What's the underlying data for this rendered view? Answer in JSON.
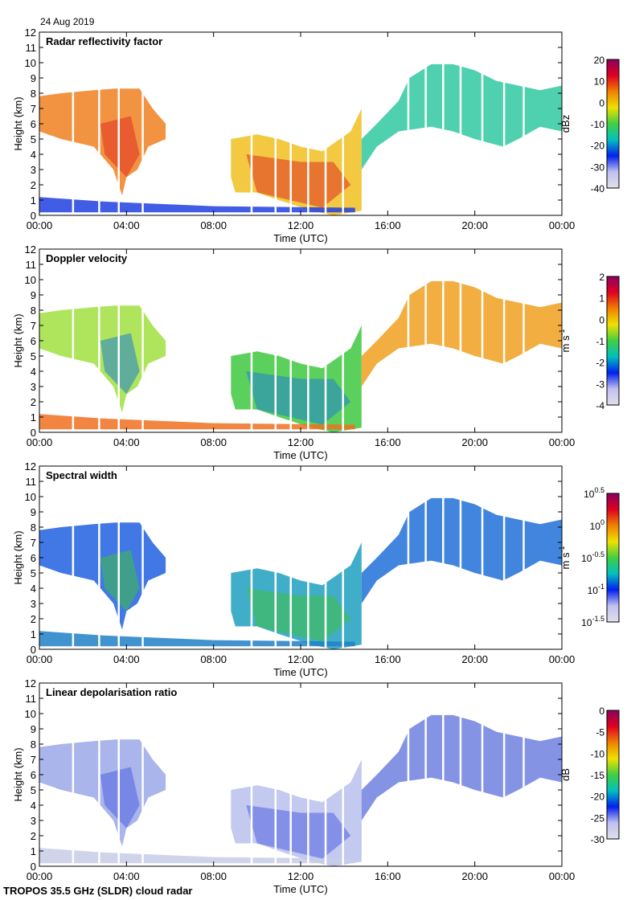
{
  "header": {
    "date": "24 Aug 2019"
  },
  "footer": {
    "instrument": "TROPOS 35.5 GHz (SLDR) cloud radar"
  },
  "chart_data": [
    {
      "type": "heatmap",
      "title": "Radar reflectivity factor",
      "xlabel": "Time (UTC)",
      "ylabel": "Height (km)",
      "xlim": [
        0,
        24
      ],
      "ylim": [
        0,
        12
      ],
      "xticks": [
        "00:00",
        "04:00",
        "08:00",
        "12:00",
        "16:00",
        "20:00",
        "00:00"
      ],
      "yticks": [
        "0",
        "1",
        "2",
        "3",
        "4",
        "5",
        "6",
        "7",
        "8",
        "9",
        "10",
        "11",
        "12"
      ],
      "colorbar": {
        "unit": "dBz",
        "ticks": [
          "20",
          "10",
          "0",
          "-10",
          "-20",
          "-30",
          "-40"
        ],
        "range": [
          -40,
          20
        ]
      },
      "region_colors": [
        "#f08020",
        "#f0c020",
        "#30c8a0",
        "#2040e0",
        "#c8c8e8"
      ],
      "core_color": "#e03020"
    },
    {
      "type": "heatmap",
      "title": "Doppler velocity",
      "xlabel": "Time (UTC)",
      "ylabel": "Height (km)",
      "xlim": [
        0,
        24
      ],
      "ylim": [
        0,
        12
      ],
      "xticks": [
        "00:00",
        "04:00",
        "08:00",
        "12:00",
        "16:00",
        "20:00",
        "00:00"
      ],
      "yticks": [
        "0",
        "1",
        "2",
        "3",
        "4",
        "5",
        "6",
        "7",
        "8",
        "9",
        "10",
        "11",
        "12"
      ],
      "colorbar": {
        "unit": "m s-1",
        "unit_base": "m s",
        "unit_exp": "-1",
        "ticks": [
          "2",
          "1",
          "0",
          "-1",
          "-2",
          "-3",
          "-4"
        ],
        "range": [
          -4,
          2
        ]
      },
      "region_colors": [
        "#a0e040",
        "#40c840",
        "#f0a020",
        "#f07020",
        "#c0c0f0"
      ],
      "core_color": "#2080d0"
    },
    {
      "type": "heatmap",
      "title": "Spectral width",
      "xlabel": "Time (UTC)",
      "ylabel": "Height (km)",
      "xlim": [
        0,
        24
      ],
      "ylim": [
        0,
        12
      ],
      "xticks": [
        "00:00",
        "04:00",
        "08:00",
        "12:00",
        "16:00",
        "20:00",
        "00:00"
      ],
      "yticks": [
        "0",
        "1",
        "2",
        "3",
        "4",
        "5",
        "6",
        "7",
        "8",
        "9",
        "10",
        "11",
        "12"
      ],
      "colorbar": {
        "unit": "m s-1",
        "unit_base": "m s",
        "unit_exp": "-1",
        "ticks": [
          "10^0.5",
          "10^0",
          "10^-0.5",
          "10^-1",
          "10^-1.5"
        ],
        "range": [
          -1.5,
          0.5
        ]
      },
      "region_colors": [
        "#2060e0",
        "#20a0c0",
        "#2070d8",
        "#2080c8",
        "#40c060"
      ],
      "core_color": "#40c040"
    },
    {
      "type": "heatmap",
      "title": "Linear depolarisation ratio",
      "xlabel": "Time (UTC)",
      "ylabel": "Height (km)",
      "xlim": [
        0,
        24
      ],
      "ylim": [
        0,
        12
      ],
      "xticks": [
        "00:00",
        "04:00",
        "08:00",
        "12:00",
        "16:00",
        "20:00",
        "00:00"
      ],
      "yticks": [
        "0",
        "1",
        "2",
        "3",
        "4",
        "5",
        "6",
        "7",
        "8",
        "9",
        "10",
        "11",
        "12"
      ],
      "colorbar": {
        "unit": "dB",
        "ticks": [
          "0",
          "-5",
          "-10",
          "-15",
          "-20",
          "-25",
          "-30"
        ],
        "range": [
          -30,
          0
        ]
      },
      "region_colors": [
        "#9aa8e8",
        "#b8c0ec",
        "#7080e0",
        "#c8cce8",
        "#c0c8f0"
      ],
      "core_color": "#5060e0"
    }
  ],
  "regions": [
    [
      [
        0,
        7.8
      ],
      [
        1,
        8
      ],
      [
        2.5,
        8.2
      ],
      [
        3.5,
        8.3
      ],
      [
        4.6,
        8.3
      ],
      [
        5.2,
        7
      ],
      [
        5.8,
        6
      ],
      [
        5.8,
        5
      ],
      [
        5,
        4.5
      ],
      [
        4.5,
        3
      ],
      [
        4,
        2.5
      ],
      [
        3.8,
        1.3
      ],
      [
        3.4,
        3
      ],
      [
        2.5,
        4.5
      ],
      [
        1,
        5
      ],
      [
        0,
        5.5
      ]
    ],
    [
      [
        8.8,
        5
      ],
      [
        10,
        5.3
      ],
      [
        11,
        5
      ],
      [
        12,
        4.5
      ],
      [
        13,
        4.2
      ],
      [
        14.3,
        5.5
      ],
      [
        14.8,
        7
      ],
      [
        14.8,
        0.3
      ],
      [
        13.5,
        0
      ],
      [
        12.5,
        0.3
      ],
      [
        11,
        1
      ],
      [
        10,
        1.5
      ],
      [
        9,
        1.5
      ],
      [
        8.8,
        2.5
      ]
    ],
    [
      [
        14.8,
        5
      ],
      [
        15.5,
        6
      ],
      [
        16.5,
        7.5
      ],
      [
        17,
        9
      ],
      [
        18,
        9.9
      ],
      [
        19,
        9.9
      ],
      [
        20,
        9.5
      ],
      [
        21,
        8.8
      ],
      [
        22,
        8.5
      ],
      [
        23,
        8.2
      ],
      [
        24,
        8.5
      ],
      [
        24,
        5.5
      ],
      [
        23,
        5.8
      ],
      [
        22,
        5
      ],
      [
        21.3,
        4.5
      ],
      [
        20,
        5
      ],
      [
        19,
        5.5
      ],
      [
        18,
        5.8
      ],
      [
        16.5,
        5.5
      ],
      [
        15.5,
        4.5
      ],
      [
        14.8,
        3
      ]
    ],
    [
      [
        0,
        1.2
      ],
      [
        3,
        0.9
      ],
      [
        8,
        0.6
      ],
      [
        14.5,
        0.5
      ],
      [
        14.5,
        0.2
      ],
      [
        0,
        0.2
      ]
    ]
  ],
  "cores": [
    [
      [
        2.8,
        6
      ],
      [
        4.2,
        6.5
      ],
      [
        4.6,
        4
      ],
      [
        4,
        2.5
      ],
      [
        3,
        4
      ]
    ],
    [
      [
        9.5,
        4
      ],
      [
        12,
        3.5
      ],
      [
        13.5,
        3.5
      ],
      [
        14.3,
        2
      ],
      [
        13,
        0.5
      ],
      [
        10,
        1.5
      ]
    ]
  ],
  "gaps_hours": [
    1.5,
    2.7,
    3.6,
    4.7,
    9.7,
    10.8,
    11.5,
    12.3,
    13.1,
    13.9,
    16.9,
    17.7,
    18.5,
    19.3,
    20.3,
    21.3,
    22.2
  ]
}
